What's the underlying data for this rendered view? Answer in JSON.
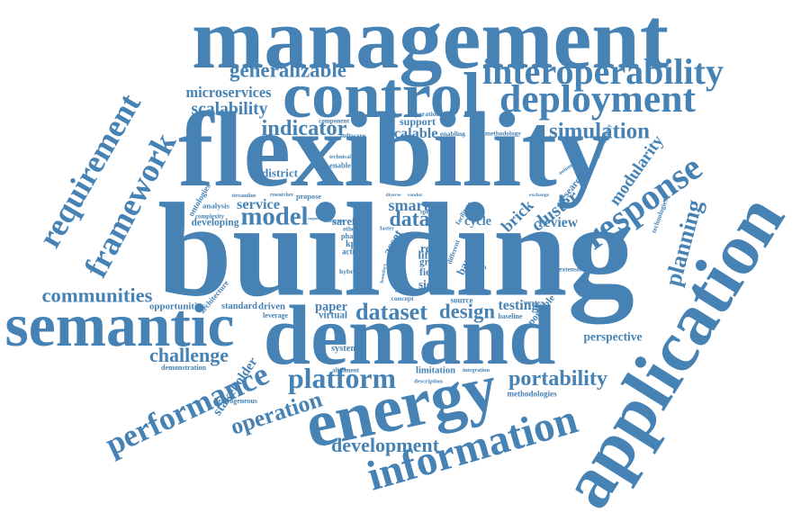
{
  "color": "#4682b4",
  "words": [
    {
      "text": "management",
      "weight": 80
    },
    {
      "text": "control",
      "weight": 62
    },
    {
      "text": "flexibility",
      "weight": 92
    },
    {
      "text": "building",
      "weight": 100
    },
    {
      "text": "demand",
      "weight": 74
    },
    {
      "text": "energy",
      "weight": 64
    },
    {
      "text": "application",
      "weight": 72
    },
    {
      "text": "semantic",
      "weight": 48
    },
    {
      "text": "information",
      "weight": 50
    },
    {
      "text": "platform",
      "weight": 36
    },
    {
      "text": "interoperability",
      "weight": 28
    },
    {
      "text": "deployment",
      "weight": 28
    },
    {
      "text": "generalizable",
      "weight": 22
    },
    {
      "text": "requirement",
      "weight": 32
    },
    {
      "text": "framework",
      "weight": 30
    },
    {
      "text": "response",
      "weight": 30
    },
    {
      "text": "model",
      "weight": 25
    },
    {
      "text": "performance",
      "weight": 30
    },
    {
      "text": "operation",
      "weight": 26
    },
    {
      "text": "development",
      "weight": 18
    },
    {
      "text": "dataset",
      "weight": 21
    },
    {
      "text": "design",
      "weight": 21
    },
    {
      "text": "portability",
      "weight": 20
    },
    {
      "text": "modularity",
      "weight": 18
    },
    {
      "text": "planning",
      "weight": 20
    },
    {
      "text": "simulation",
      "weight": 18
    },
    {
      "text": "indicator",
      "weight": 18
    },
    {
      "text": "scalability",
      "weight": 14
    },
    {
      "text": "microservices",
      "weight": 13
    },
    {
      "text": "communities",
      "weight": 15
    },
    {
      "text": "challenge",
      "weight": 15
    },
    {
      "text": "stakeholder",
      "weight": 14
    },
    {
      "text": "perspective",
      "weight": 12
    },
    {
      "text": "data",
      "weight": 18
    },
    {
      "text": "smart",
      "weight": 15
    },
    {
      "text": "service",
      "weight": 14
    },
    {
      "text": "scalable",
      "weight": 13
    },
    {
      "text": "support",
      "weight": 12
    },
    {
      "text": "district",
      "weight": 12
    },
    {
      "text": "cluster",
      "weight": 14
    },
    {
      "text": "brick",
      "weight": 14
    },
    {
      "text": "review",
      "weight": 12
    },
    {
      "text": "cycle",
      "weight": 13
    },
    {
      "text": "testing",
      "weight": 12
    },
    {
      "text": "paper",
      "weight": 12
    },
    {
      "text": "saref",
      "weight": 11
    },
    {
      "text": "real",
      "weight": 13
    },
    {
      "text": "field",
      "weight": 11
    },
    {
      "text": "side",
      "weight": 11
    },
    {
      "text": "grid",
      "weight": 11
    },
    {
      "text": "asset",
      "weight": 11
    },
    {
      "text": "developing",
      "weight": 9
    },
    {
      "text": "opportunities",
      "weight": 9
    },
    {
      "text": "standard",
      "weight": 9
    },
    {
      "text": "driven",
      "weight": 10
    },
    {
      "text": "system",
      "weight": 9
    },
    {
      "text": "limitation",
      "weight": 9
    },
    {
      "text": "demonstration",
      "weight": 8
    },
    {
      "text": "heterogeneous",
      "weight": 8
    },
    {
      "text": "methodologies",
      "weight": 8
    },
    {
      "text": "research",
      "weight": 9
    },
    {
      "text": "ontologies",
      "weight": 8
    },
    {
      "text": "analysis",
      "weight": 8
    },
    {
      "text": "software",
      "weight": 7
    },
    {
      "text": "enable",
      "weight": 7
    },
    {
      "text": "virtual",
      "weight": 8
    },
    {
      "text": "portable",
      "weight": 8
    },
    {
      "text": "leverage",
      "weight": 7
    },
    {
      "text": "concept",
      "weight": 7
    },
    {
      "text": "source",
      "weight": 7
    },
    {
      "text": "baseline",
      "weight": 7
    },
    {
      "text": "description",
      "weight": 7
    },
    {
      "text": "integration",
      "weight": 6
    },
    {
      "text": "component",
      "weight": 6
    },
    {
      "text": "technical",
      "weight": 6
    },
    {
      "text": "operational",
      "weight": 6
    },
    {
      "text": "methodology",
      "weight": 6
    },
    {
      "text": "enabling",
      "weight": 6
    },
    {
      "text": "automation",
      "weight": 6
    },
    {
      "text": "heterogeneity",
      "weight": 6
    },
    {
      "text": "technologies",
      "weight": 6
    },
    {
      "text": "extension",
      "weight": 6
    },
    {
      "text": "propose",
      "weight": 7
    },
    {
      "text": "researcher",
      "weight": 6
    },
    {
      "text": "streamline",
      "weight": 6
    },
    {
      "text": "complexity",
      "weight": 6
    },
    {
      "text": "architecture",
      "weight": 6
    },
    {
      "text": "alignment",
      "weight": 6
    },
    {
      "text": "phase",
      "weight": 7
    },
    {
      "text": "kpis",
      "weight": 7
    },
    {
      "text": "actor",
      "weight": 7
    },
    {
      "text": "life",
      "weight": 7
    },
    {
      "text": "hybrid",
      "weight": 6
    },
    {
      "text": "modular",
      "weight": 6
    },
    {
      "text": "policy",
      "weight": 6
    },
    {
      "text": "facilitate",
      "weight": 6
    },
    {
      "text": "barrier",
      "weight": 7
    },
    {
      "text": "different",
      "weight": 6
    },
    {
      "text": "domain",
      "weight": 6
    },
    {
      "text": "specific",
      "weight": 6
    },
    {
      "text": "vendor",
      "weight": 5
    },
    {
      "text": "diverse",
      "weight": 5
    },
    {
      "text": "exchange",
      "weight": 5
    },
    {
      "text": "introduce",
      "weight": 5
    },
    {
      "text": "metadata",
      "weight": 5
    },
    {
      "text": "height",
      "weight": 5
    },
    {
      "text": "other",
      "weight": 5
    },
    {
      "text": "faster",
      "weight": 5
    },
    {
      "text": "boundary",
      "weight": 5
    },
    {
      "text": "integrate",
      "weight": 5
    },
    {
      "text": "connect",
      "weight": 5
    },
    {
      "text": "engineering",
      "weight": 5
    }
  ]
}
